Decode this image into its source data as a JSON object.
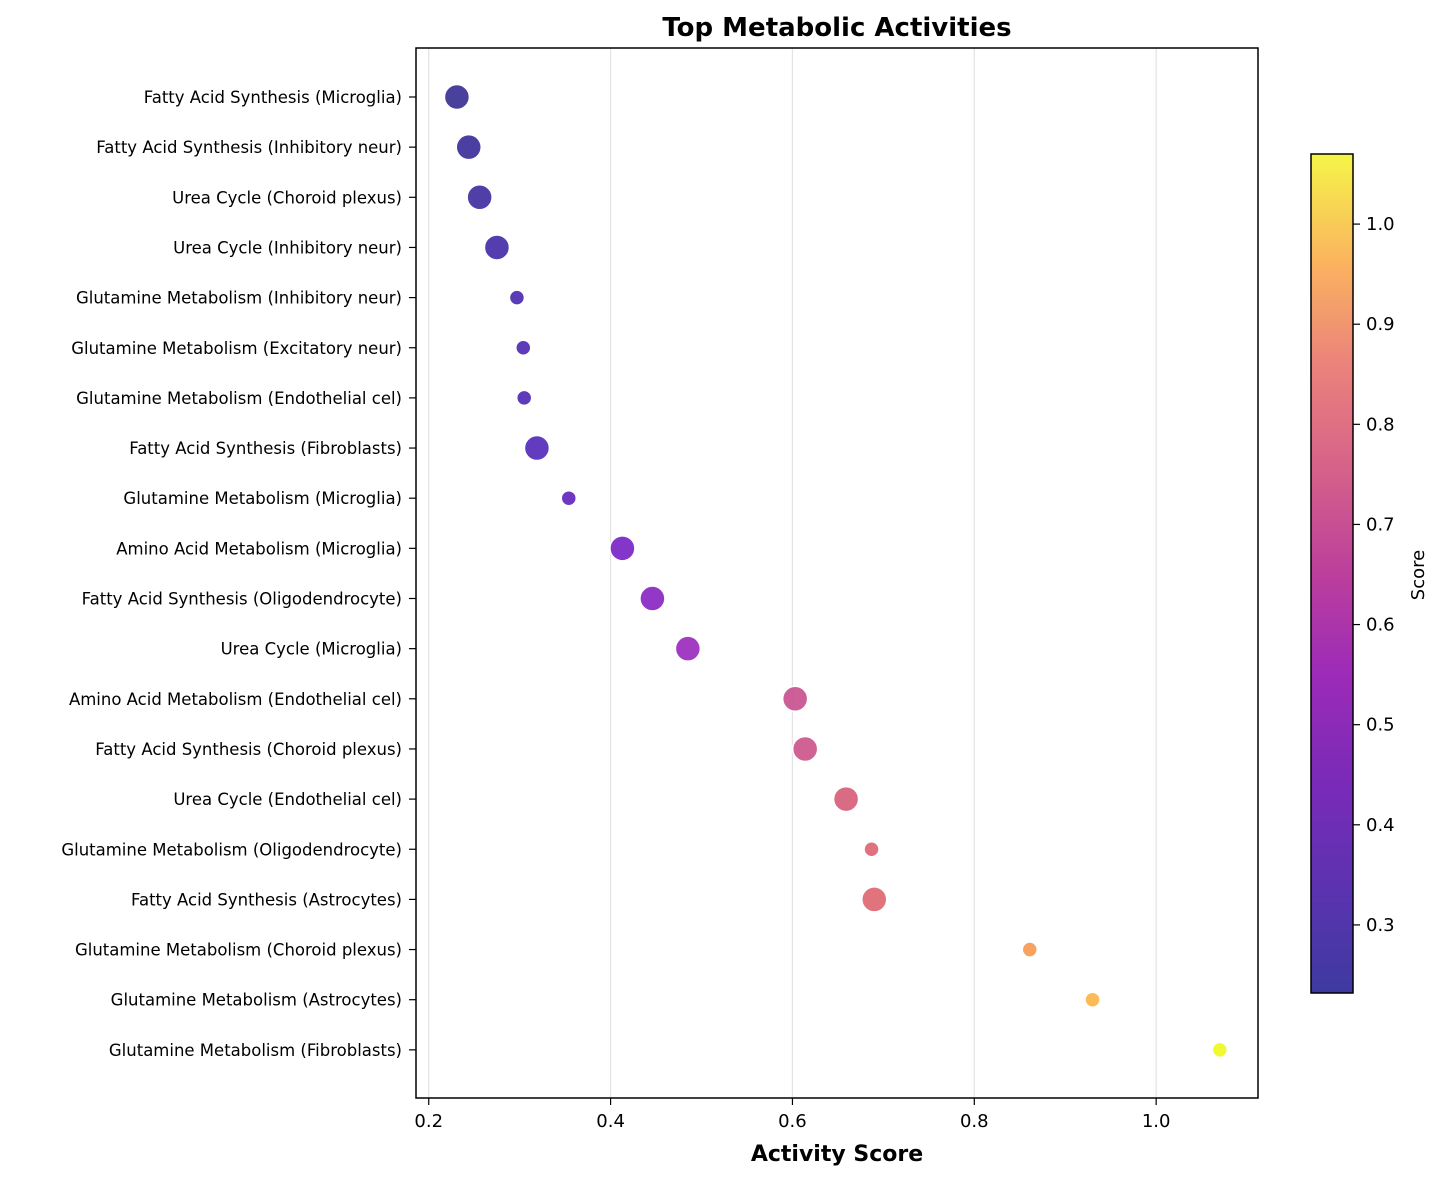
{
  "chart_data": {
    "type": "scatter",
    "title": "Top Metabolic Activities",
    "xlabel": "Activity Score",
    "ylabel": "",
    "xlim": [
      0.186,
      1.112
    ],
    "xticks": [
      0.2,
      0.4,
      0.6,
      0.8,
      1.0
    ],
    "xtick_labels": [
      "0.2",
      "0.4",
      "0.6",
      "0.8",
      "1.0"
    ],
    "grid": "x-axis vertical gridlines",
    "colormap": "plasma",
    "colorbar": {
      "label": "Score",
      "range": [
        0.232,
        1.07
      ],
      "ticks": [
        0.3,
        0.4,
        0.5,
        0.6,
        0.7,
        0.8,
        0.9,
        1.0
      ],
      "tick_labels": [
        "0.3",
        "0.4",
        "0.5",
        "0.6",
        "0.7",
        "0.8",
        "0.9",
        "1.0"
      ]
    },
    "points": [
      {
        "label": "Fatty Acid Synthesis (Microglia)",
        "x": 0.231,
        "size": "large",
        "color": "#3b3195"
      },
      {
        "label": "Fatty Acid Synthesis (Inhibitory neur)",
        "x": 0.244,
        "size": "large",
        "color": "#3c309a"
      },
      {
        "label": "Urea Cycle (Choroid plexus)",
        "x": 0.256,
        "size": "large",
        "color": "#402fa0"
      },
      {
        "label": "Urea Cycle (Inhibitory neur)",
        "x": 0.275,
        "size": "large",
        "color": "#452ea8"
      },
      {
        "label": "Glutamine Metabolism (Inhibitory neur)",
        "x": 0.297,
        "size": "small",
        "color": "#4c2bb0"
      },
      {
        "label": "Glutamine Metabolism (Excitatory neur)",
        "x": 0.304,
        "size": "small",
        "color": "#4f2ab3"
      },
      {
        "label": "Glutamine Metabolism (Endothelial cel)",
        "x": 0.305,
        "size": "small",
        "color": "#4f2ab3"
      },
      {
        "label": "Fatty Acid Synthesis (Fibroblasts)",
        "x": 0.319,
        "size": "large",
        "color": "#552ab8"
      },
      {
        "label": "Glutamine Metabolism (Microglia)",
        "x": 0.354,
        "size": "small",
        "color": "#6227c0"
      },
      {
        "label": "Amino Acid Metabolism (Microglia)",
        "x": 0.413,
        "size": "large",
        "color": "#7b25c6"
      },
      {
        "label": "Fatty Acid Synthesis (Oligodendrocyte)",
        "x": 0.446,
        "size": "large",
        "color": "#8a26c4"
      },
      {
        "label": "Urea Cycle (Microglia)",
        "x": 0.485,
        "size": "large",
        "color": "#9a2bbd"
      },
      {
        "label": "Amino Acid Metabolism (Endothelial cel)",
        "x": 0.603,
        "size": "large",
        "color": "#c8518f"
      },
      {
        "label": "Fatty Acid Synthesis (Choroid plexus)",
        "x": 0.614,
        "size": "large",
        "color": "#cc568b"
      },
      {
        "label": "Urea Cycle (Endothelial cel)",
        "x": 0.659,
        "size": "large",
        "color": "#d65f7a"
      },
      {
        "label": "Glutamine Metabolism (Oligodendrocyte)",
        "x": 0.687,
        "size": "small",
        "color": "#dc6672"
      },
      {
        "label": "Fatty Acid Synthesis (Astrocytes)",
        "x": 0.69,
        "size": "large",
        "color": "#dd6771"
      },
      {
        "label": "Glutamine Metabolism (Choroid plexus)",
        "x": 0.861,
        "size": "small",
        "color": "#f79a55"
      },
      {
        "label": "Glutamine Metabolism (Astrocytes)",
        "x": 0.93,
        "size": "small",
        "color": "#fbb54b"
      },
      {
        "label": "Glutamine Metabolism (Fibroblasts)",
        "x": 1.07,
        "size": "small",
        "color": "#f0f921"
      }
    ]
  }
}
